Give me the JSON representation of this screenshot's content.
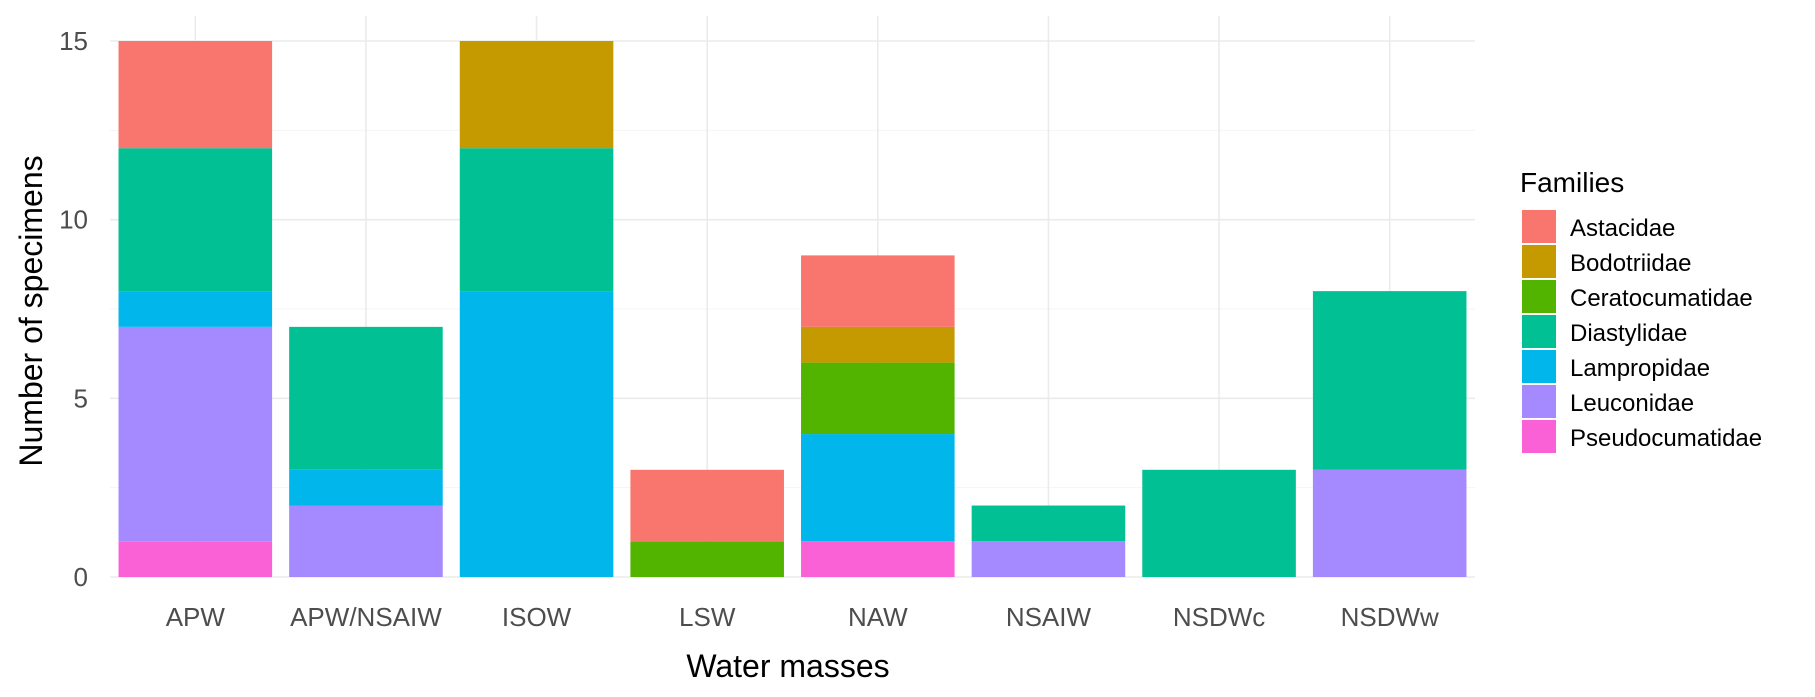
{
  "chart_data": {
    "type": "bar",
    "stacked": true,
    "title": "",
    "xlabel": "Water masses",
    "ylabel": "Number of specimens",
    "ylim": [
      0,
      15
    ],
    "yticks": [
      0,
      5,
      10,
      15
    ],
    "grid": true,
    "legend_title": "Families",
    "legend_position": "right",
    "categories": [
      "APW",
      "APW/NSAIW",
      "ISOW",
      "LSW",
      "NAW",
      "NSAIW",
      "NSDWc",
      "NSDWw"
    ],
    "series": [
      {
        "name": "Astacidae",
        "color": "#F8766D",
        "values": [
          3,
          0,
          0,
          2,
          2,
          0,
          0,
          0
        ]
      },
      {
        "name": "Bodotriidae",
        "color": "#C49A00",
        "values": [
          0,
          0,
          3,
          0,
          1,
          0,
          0,
          0
        ]
      },
      {
        "name": "Ceratocumatidae",
        "color": "#53B400",
        "values": [
          0,
          0,
          0,
          1,
          2,
          0,
          0,
          0
        ]
      },
      {
        "name": "Diastylidae",
        "color": "#00C094",
        "values": [
          4,
          4,
          4,
          0,
          0,
          1,
          3,
          5
        ]
      },
      {
        "name": "Lampropidae",
        "color": "#00B6EB",
        "values": [
          1,
          1,
          8,
          0,
          3,
          0,
          0,
          0
        ]
      },
      {
        "name": "Leuconidae",
        "color": "#A58AFF",
        "values": [
          6,
          2,
          0,
          0,
          0,
          1,
          0,
          3
        ]
      },
      {
        "name": "Pseudocumatidae",
        "color": "#FB61D7",
        "values": [
          1,
          0,
          0,
          0,
          1,
          0,
          0,
          0
        ]
      }
    ]
  }
}
